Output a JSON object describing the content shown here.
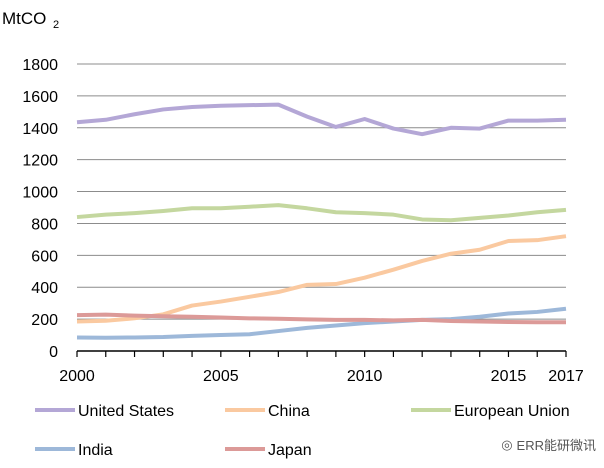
{
  "chart_data": {
    "type": "line",
    "ylabel": "MtCO",
    "ylabel_sub": "2",
    "x": [
      2000,
      2001,
      2002,
      2003,
      2004,
      2005,
      2006,
      2007,
      2008,
      2009,
      2010,
      2011,
      2012,
      2013,
      2014,
      2015,
      2016,
      2017
    ],
    "x_tick_labels": [
      "2000",
      "2005",
      "2010",
      "2015",
      "2017"
    ],
    "x_tick_values": [
      2000,
      2005,
      2010,
      2015,
      2017
    ],
    "y_ticks": [
      0,
      200,
      400,
      600,
      800,
      1000,
      1200,
      1400,
      1600,
      1800
    ],
    "ylim": [
      0,
      1800
    ],
    "grid": true,
    "legend_placement": "bottom",
    "series": [
      {
        "name": "United States",
        "color": "#b4a7d6",
        "values": [
          1435,
          1450,
          1485,
          1515,
          1530,
          1538,
          1542,
          1545,
          1470,
          1405,
          1455,
          1395,
          1360,
          1400,
          1395,
          1445,
          1445,
          1450
        ]
      },
      {
        "name": "China",
        "color": "#fac9a0",
        "values": [
          185,
          190,
          205,
          230,
          285,
          310,
          340,
          370,
          415,
          420,
          460,
          510,
          565,
          610,
          635,
          690,
          695,
          720
        ]
      },
      {
        "name": "European Union",
        "color": "#c4d79f",
        "values": [
          840,
          855,
          865,
          878,
          895,
          895,
          905,
          915,
          895,
          870,
          865,
          855,
          825,
          820,
          835,
          850,
          870,
          885
        ]
      },
      {
        "name": "India",
        "color": "#9db8d9",
        "values": [
          85,
          83,
          85,
          88,
          95,
          100,
          105,
          125,
          145,
          160,
          175,
          185,
          195,
          200,
          215,
          235,
          245,
          265
        ]
      },
      {
        "name": "Japan",
        "color": "#dc9a98",
        "values": [
          225,
          228,
          222,
          218,
          215,
          210,
          205,
          202,
          198,
          195,
          195,
          192,
          195,
          188,
          185,
          182,
          180,
          180
        ]
      }
    ]
  },
  "watermark": "ERR能研微讯"
}
